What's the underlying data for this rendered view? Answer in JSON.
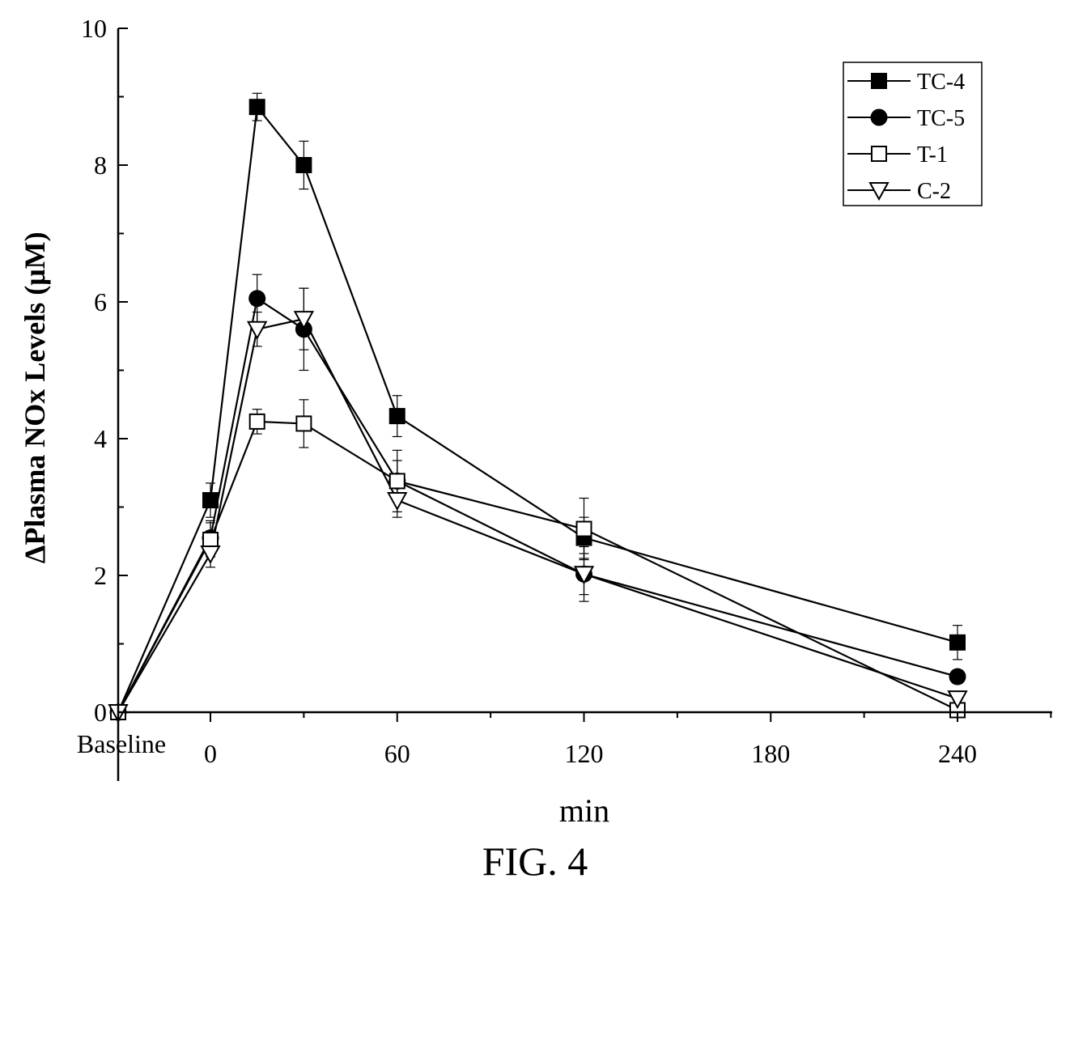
{
  "figure_caption": "FIG. 4",
  "chart_data": {
    "type": "line",
    "xlabel": "min",
    "ylabel": "ΔPlasma NOx Levels (μM)",
    "x_ticks": [
      {
        "label": "Baseline",
        "x": -30
      },
      {
        "label": "0",
        "x": 0
      },
      {
        "label": "60",
        "x": 60
      },
      {
        "label": "120",
        "x": 120
      },
      {
        "label": "180",
        "x": 180
      },
      {
        "label": "240",
        "x": 240
      }
    ],
    "y_ticks": [
      "0",
      "2",
      "4",
      "6",
      "8",
      "10"
    ],
    "xlim": [
      -30,
      270
    ],
    "ylim": [
      -1,
      10
    ],
    "legend_position": "top-right",
    "x": [
      -30,
      0,
      15,
      30,
      60,
      120,
      240
    ],
    "series": [
      {
        "name": "TC-4",
        "marker": "filled-square",
        "values": [
          0,
          3.1,
          8.85,
          8.0,
          4.33,
          2.55,
          1.02
        ],
        "errors": [
          0,
          0.25,
          0.2,
          0.35,
          0.3,
          0.3,
          0.25
        ]
      },
      {
        "name": "TC-5",
        "marker": "filled-circle",
        "values": [
          0,
          2.55,
          6.05,
          5.6,
          3.38,
          2.02,
          0.52
        ],
        "errors": [
          0,
          0.25,
          0.35,
          0.6,
          0.3,
          0.4,
          0.1
        ]
      },
      {
        "name": "T-1",
        "marker": "open-square",
        "values": [
          0,
          2.52,
          4.25,
          4.22,
          3.38,
          2.68,
          0.03
        ],
        "errors": [
          0,
          0.25,
          0.18,
          0.35,
          0.45,
          0.45,
          0.1
        ]
      },
      {
        "name": "C-2",
        "marker": "open-triangle-down",
        "values": [
          0,
          2.32,
          5.6,
          5.75,
          3.1,
          2.02,
          0.2
        ],
        "errors": [
          0,
          0.2,
          0.25,
          0.45,
          0.25,
          0.3,
          0.1
        ]
      }
    ]
  }
}
